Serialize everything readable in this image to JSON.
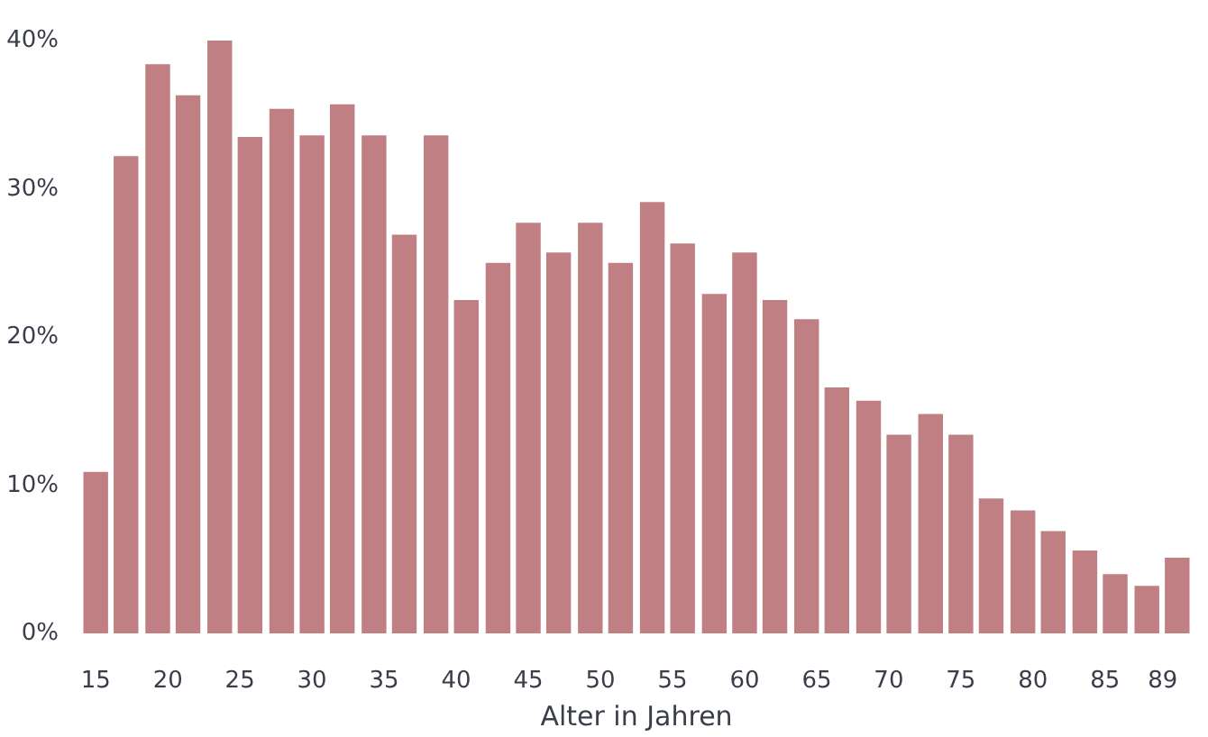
{
  "chart_data": {
    "type": "bar",
    "xlabel": "Alter in Jahren",
    "x": [
      15,
      17.1,
      19.3,
      21.4,
      23.6,
      25.7,
      27.9,
      30,
      32.1,
      34.3,
      36.4,
      38.6,
      40.7,
      42.9,
      45,
      47.1,
      49.3,
      51.4,
      53.6,
      55.7,
      57.9,
      60,
      62.1,
      64.3,
      66.4,
      68.6,
      70.7,
      72.9,
      75,
      77.1,
      79.3,
      81.4,
      83.6,
      85.7,
      87.9,
      90
    ],
    "values": [
      10.9,
      32.2,
      38.4,
      36.3,
      40.0,
      33.5,
      35.4,
      33.6,
      35.7,
      33.6,
      26.9,
      33.6,
      22.5,
      25.0,
      27.7,
      25.7,
      27.7,
      25.0,
      29.1,
      26.3,
      22.9,
      25.7,
      22.5,
      21.2,
      16.6,
      15.7,
      13.4,
      14.8,
      13.4,
      9.1,
      8.3,
      6.9,
      5.6,
      4.0,
      3.2,
      5.1
    ],
    "color": "#c07f83",
    "xlim": [
      13.8,
      91.2
    ],
    "ylim": [
      0,
      40
    ],
    "xticks": [
      15,
      20,
      25,
      30,
      35,
      40,
      45,
      50,
      55,
      60,
      65,
      70,
      75,
      80,
      85,
      89
    ],
    "yticks": [
      {
        "value": 0,
        "label": "0%"
      },
      {
        "value": 10,
        "label": "10%"
      },
      {
        "value": 20,
        "label": "20%"
      },
      {
        "value": 30,
        "label": "30%"
      },
      {
        "value": 40,
        "label": "40%"
      }
    ],
    "grid": false
  }
}
